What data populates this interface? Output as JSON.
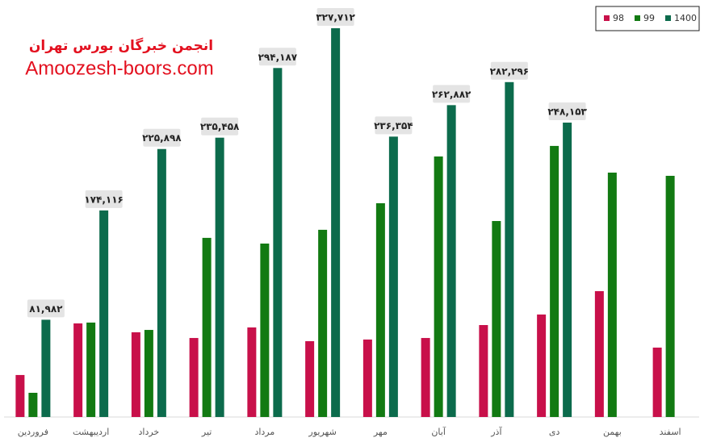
{
  "chart_data": {
    "type": "bar",
    "watermark": [
      "انجمن خبرگان بورس تهران",
      "Amoozesh-boors.com"
    ],
    "categories": [
      "فروردین",
      "اردیبهشت",
      "خرداد",
      "تیر",
      "مرداد",
      "شهریور",
      "مهر",
      "آبان",
      "آذر",
      "دی",
      "بهمن",
      "اسفند"
    ],
    "series": [
      {
        "name": "98",
        "color": "#c8104a",
        "values": [
          35400,
          78900,
          71400,
          66600,
          75500,
          63900,
          65300,
          66600,
          77500,
          86400,
          106100,
          58500
        ]
      },
      {
        "name": "99",
        "color": "#127a12",
        "values": [
          20400,
          79600,
          73400,
          151000,
          146200,
          157800,
          180200,
          219600,
          165200,
          228500,
          206000,
          203300
        ]
      },
      {
        "name": "1400",
        "color": "#0c6b4c",
        "values": [
          81982,
          174116,
          225898,
          235458,
          294187,
          327712,
          236354,
          262882,
          282296,
          248153,
          null,
          null
        ],
        "value_labels": [
          "۸۱,۹۸۲",
          "۱۷۴,۱۱۶",
          "۲۲۵,۸۹۸",
          "۲۳۵,۴۵۸",
          "۲۹۴,۱۸۷",
          "۳۲۷,۷۱۲",
          "۲۳۶,۳۵۴",
          "۲۶۲,۸۸۲",
          "۲۸۲,۲۹۶",
          "۲۴۸,۱۵۳",
          null,
          null
        ]
      }
    ],
    "legend": "top-right"
  }
}
